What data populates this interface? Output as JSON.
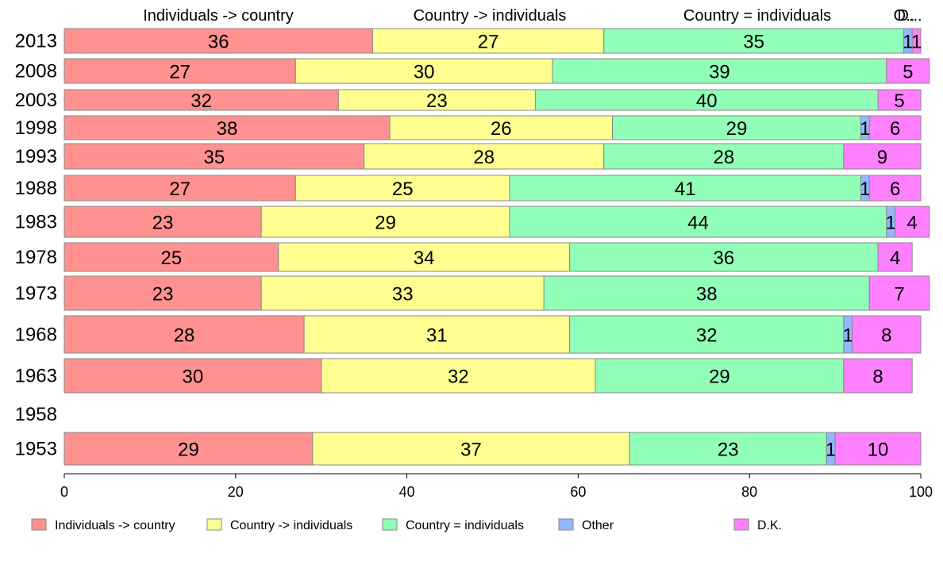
{
  "colors": {
    "individuals_country": "#ff9191",
    "country_individuals": "#ffff91",
    "country_equal": "#91ffb8",
    "other": "#91b8ff",
    "dk": "#ff80ff"
  },
  "chart_data": {
    "type": "bar",
    "orientation": "horizontal",
    "stacked": true,
    "title": "",
    "xlabel": "",
    "ylabel": "",
    "xlim": [
      0,
      100
    ],
    "x_ticks": [
      "0",
      "20",
      "40",
      "60",
      "80",
      "100"
    ],
    "column_headers": [
      "Individuals -> country",
      "Country -> individuals",
      "Country = individuals",
      "O..",
      "D..."
    ],
    "legend_position": "bottom",
    "categories": [
      "2013",
      "2008",
      "2003",
      "1998",
      "1993",
      "1988",
      "1983",
      "1978",
      "1973",
      "1968",
      "1963",
      "1958",
      "1953"
    ],
    "series": [
      {
        "name": "Individuals -> country",
        "values": [
          36,
          27,
          32,
          38,
          35,
          27,
          23,
          25,
          23,
          28,
          30,
          null,
          29
        ]
      },
      {
        "name": "Country -> individuals",
        "values": [
          27,
          30,
          23,
          26,
          28,
          25,
          29,
          34,
          33,
          31,
          32,
          null,
          37
        ]
      },
      {
        "name": "Country = individuals",
        "values": [
          35,
          39,
          40,
          29,
          28,
          41,
          44,
          36,
          38,
          32,
          29,
          null,
          23
        ]
      },
      {
        "name": "Other",
        "values": [
          1,
          0,
          0,
          1,
          0,
          1,
          1,
          0,
          0,
          1,
          0,
          null,
          1
        ]
      },
      {
        "name": "D.K.",
        "values": [
          1,
          5,
          5,
          6,
          9,
          6,
          4,
          4,
          7,
          8,
          8,
          null,
          10
        ]
      }
    ]
  }
}
